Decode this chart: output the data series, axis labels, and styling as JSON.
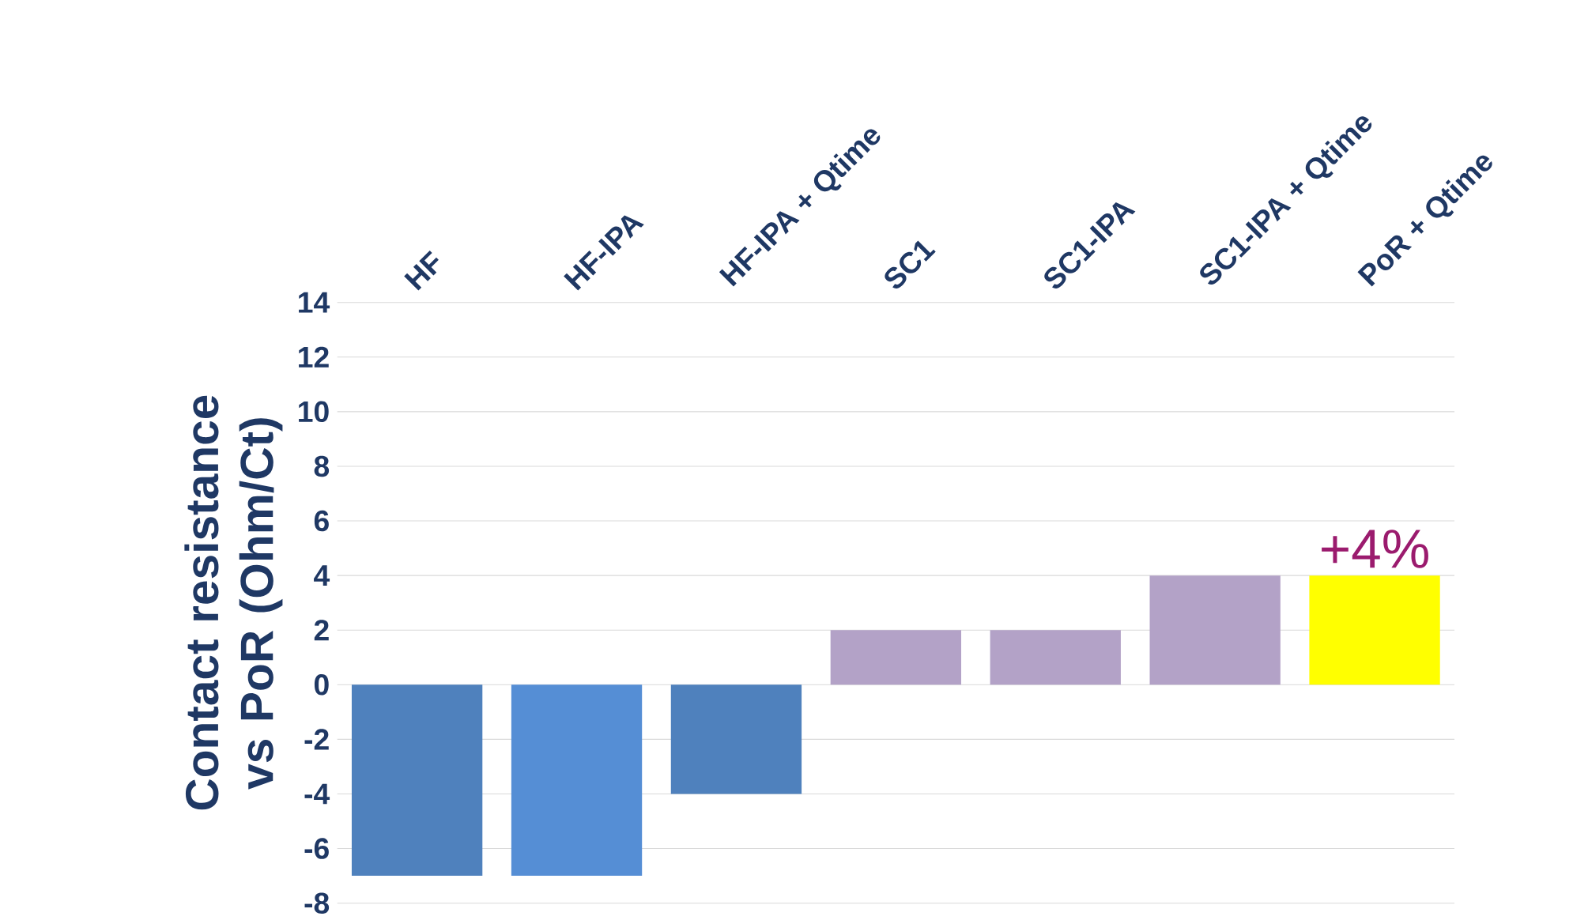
{
  "chart_data": {
    "type": "bar",
    "ylabel": "Contact resistance vs PoR (Ohm/Ct)",
    "categories": [
      "HF",
      "HF-IPA",
      "HF-IPA + Qtime",
      "SC1",
      "SC1-IPA",
      "SC1-IPA + Qtime",
      "PoR + Qtime"
    ],
    "values": [
      -7,
      -7,
      -4,
      2,
      2,
      4,
      4
    ],
    "colors": [
      "#4f81bd",
      "#558ed5",
      "#4f81bd",
      "#b3a2c7",
      "#b3a2c7",
      "#b3a2c7",
      "#ffff00"
    ],
    "ylim": [
      -8,
      14
    ],
    "yticks": [
      -8,
      -6,
      -4,
      -2,
      0,
      2,
      4,
      6,
      8,
      10,
      12,
      14
    ],
    "grid": "y",
    "annotations": [
      {
        "text": "+4%",
        "x": "PoR + Qtime",
        "y": 4
      }
    ]
  }
}
